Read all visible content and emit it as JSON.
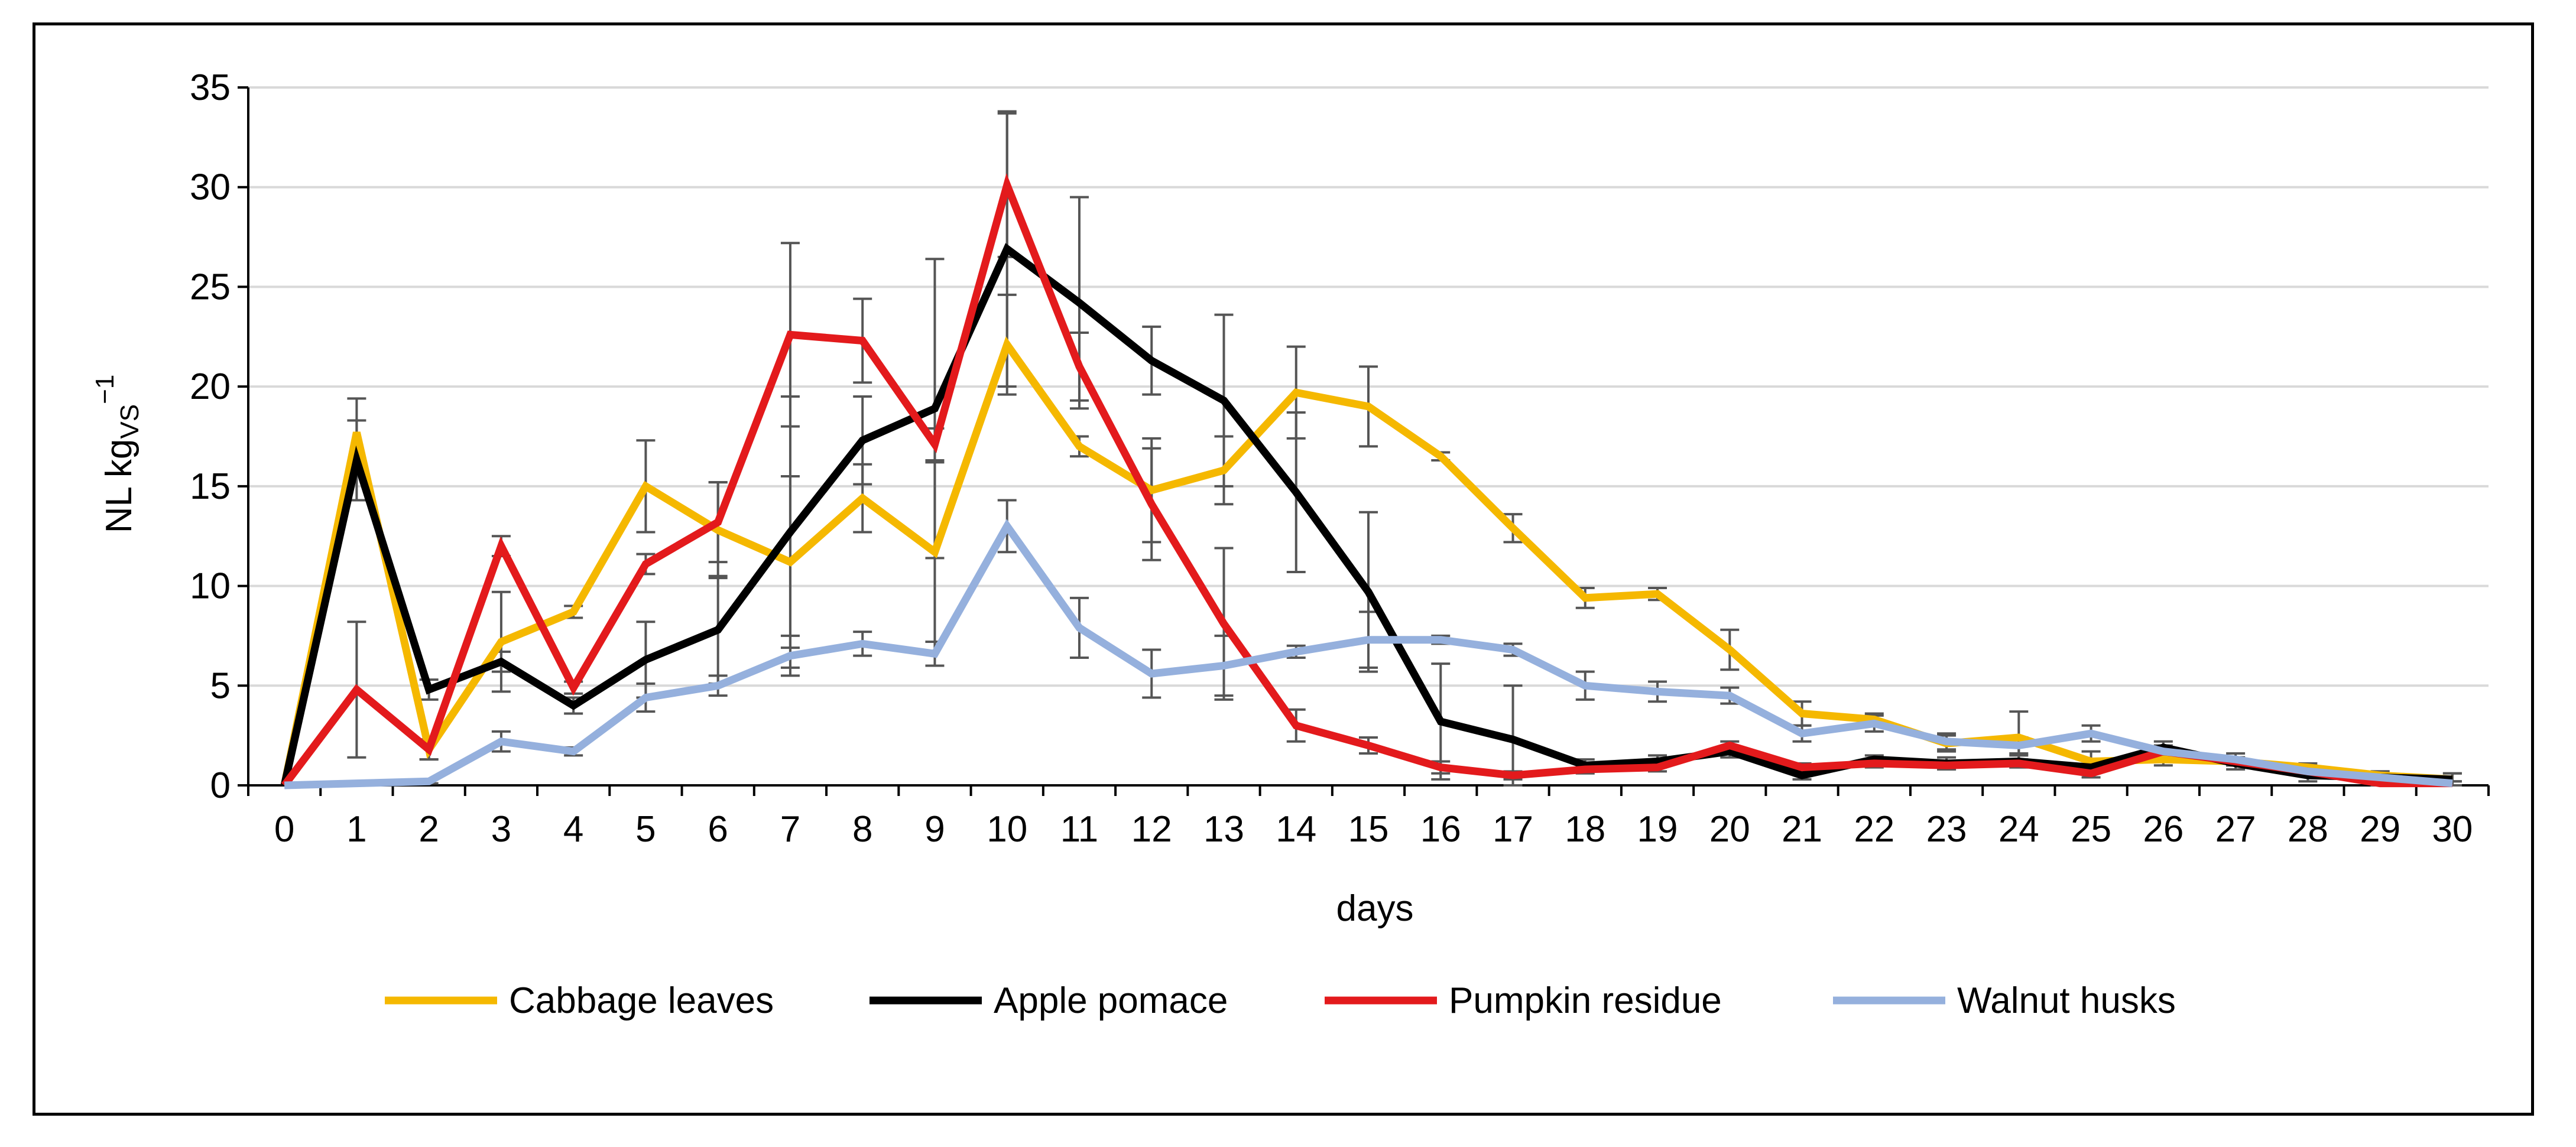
{
  "chart_data": {
    "type": "line",
    "title": "",
    "xlabel": "days",
    "ylabel": {
      "main": "NL kg",
      "subscript": "VS",
      "superscript": "−1"
    },
    "x": [
      0,
      1,
      2,
      3,
      4,
      5,
      6,
      7,
      8,
      9,
      10,
      11,
      12,
      13,
      14,
      15,
      16,
      17,
      18,
      19,
      20,
      21,
      22,
      23,
      24,
      25,
      26,
      27,
      28,
      29,
      30
    ],
    "x_tick_labels": [
      "0",
      "1",
      "2",
      "3",
      "4",
      "5",
      "6",
      "7",
      "8",
      "9",
      "10",
      "11",
      "12",
      "13",
      "14",
      "15",
      "16",
      "17",
      "18",
      "19",
      "20",
      "21",
      "22",
      "23",
      "24",
      "25",
      "26",
      "27",
      "28",
      "29",
      "30"
    ],
    "y_ticks": [
      0,
      5,
      10,
      15,
      20,
      25,
      30,
      35
    ],
    "y_tick_labels": [
      "0",
      "5",
      "10",
      "15",
      "20",
      "25",
      "30",
      "35"
    ],
    "ylim": [
      0,
      35
    ],
    "grid": "horizontal",
    "legend_position": "bottom",
    "series": [
      {
        "name": "Cabbage leaves",
        "color": "#F5B800",
        "values": [
          0,
          17.7,
          1.8,
          7.2,
          8.7,
          15.0,
          12.8,
          11.2,
          14.4,
          11.7,
          22.1,
          17.0,
          14.8,
          15.8,
          19.7,
          19.0,
          16.5,
          12.9,
          9.4,
          9.6,
          6.8,
          3.6,
          3.3,
          2.1,
          2.4,
          1.2,
          1.3,
          1.2,
          0.9,
          0.5,
          0.3
        ],
        "errors": [
          0,
          1.7,
          0.5,
          2.5,
          0.3,
          2.3,
          2.4,
          4.3,
          1.7,
          4.5,
          2.5,
          0.5,
          2.6,
          1.7,
          2.3,
          2.0,
          0.2,
          0.7,
          0.5,
          0.3,
          1.0,
          0.6,
          0.3,
          0.4,
          1.3,
          0.5,
          0.3,
          0.2,
          0.2,
          0.2,
          0.3
        ]
      },
      {
        "name": "Apple pomace",
        "color": "#000000",
        "values": [
          0,
          16.3,
          4.8,
          6.2,
          4.0,
          6.3,
          7.8,
          12.7,
          17.3,
          18.9,
          26.9,
          24.2,
          21.3,
          19.3,
          14.7,
          9.7,
          3.2,
          2.3,
          1.0,
          1.2,
          1.7,
          0.5,
          1.3,
          1.1,
          1.2,
          0.9,
          1.9,
          1.1,
          0.5,
          0.4,
          0.3
        ],
        "errors": [
          0,
          2.0,
          0.5,
          0.5,
          0.4,
          1.9,
          2.7,
          6.8,
          2.2,
          7.5,
          6.9,
          5.3,
          1.7,
          4.3,
          4.0,
          4.0,
          2.9,
          2.7,
          0.3,
          0.3,
          0.3,
          0.2,
          0.2,
          0.3,
          0.3,
          0.3,
          0.3,
          0.3,
          0.3,
          0.3,
          0.3
        ]
      },
      {
        "name": "Pumpkin residue",
        "color": "#E31A1C",
        "values": [
          0,
          4.8,
          1.8,
          12.0,
          4.9,
          11.1,
          13.2,
          22.6,
          22.3,
          17.1,
          30.1,
          21.0,
          14.1,
          8.1,
          3.0,
          2.0,
          0.9,
          0.5,
          0.8,
          0.9,
          2.0,
          0.9,
          1.1,
          1.0,
          1.1,
          0.6,
          1.7,
          1.2,
          0.7,
          0.1,
          0.1
        ],
        "errors": [
          0,
          3.4,
          0.5,
          0.5,
          0.3,
          0.5,
          2.0,
          4.6,
          2.1,
          0.8,
          3.6,
          1.7,
          2.8,
          3.8,
          0.8,
          0.4,
          0.3,
          0.2,
          0.2,
          0.2,
          0.2,
          0.2,
          0.2,
          0.2,
          0.2,
          0.2,
          0.2,
          0.2,
          0.2,
          0.1,
          0.1
        ]
      },
      {
        "name": "Walnut husks",
        "color": "#95B0DD",
        "values": [
          0,
          0.1,
          0.2,
          2.2,
          1.7,
          4.4,
          5.0,
          6.5,
          7.1,
          6.6,
          13.0,
          7.9,
          5.6,
          6.0,
          6.7,
          7.3,
          7.3,
          6.8,
          5.0,
          4.7,
          4.5,
          2.6,
          3.1,
          2.2,
          2.0,
          2.6,
          1.7,
          1.3,
          0.7,
          0.4,
          0.1
        ],
        "errors": [
          0,
          0.1,
          0.1,
          0.5,
          0.2,
          0.7,
          0.5,
          1.0,
          0.6,
          0.6,
          1.3,
          1.5,
          1.2,
          1.5,
          0.3,
          1.4,
          0.2,
          0.3,
          0.7,
          0.5,
          0.4,
          0.4,
          0.4,
          0.4,
          0.4,
          0.4,
          0.3,
          0.3,
          0.2,
          0.2,
          0.1
        ]
      }
    ]
  }
}
